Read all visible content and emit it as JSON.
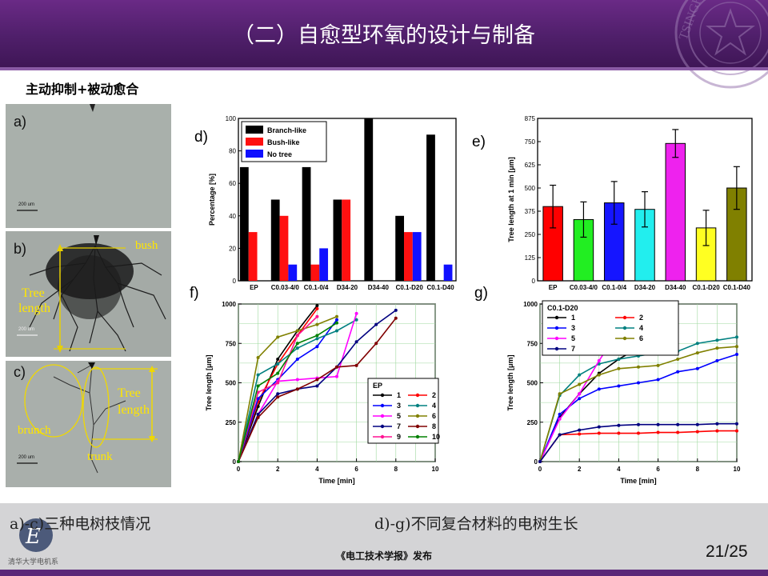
{
  "slide": {
    "title": "（二）自愈型环氧的设计与制备",
    "subtitle": "主动抑制+被动愈合",
    "caption_left": "a)-c)三种电树枝情况",
    "caption_right": "d)-g)不同复合材料的电树生长",
    "publisher": "《电工技术学报》发布",
    "page": "21/25",
    "logo_text": "清华大学电机系",
    "accent_color": "#5a2778"
  },
  "photos": {
    "a": {
      "label": "a)",
      "scale": "200 um"
    },
    "b": {
      "label": "b)",
      "scale": "200 um",
      "bush": "bush",
      "tree_line1": "Tree",
      "tree_line2": "length"
    },
    "c": {
      "label": "c)",
      "scale": "200 um",
      "brunch": "brunch",
      "trunk": "trunk",
      "tree_line1": "Tree",
      "tree_line2": "length"
    }
  },
  "chart_data": [
    {
      "id": "d",
      "type": "bar",
      "panel_label": "d)",
      "ylabel": "Percentage  [%]",
      "ylim": [
        0,
        100
      ],
      "yticks": [
        0,
        20,
        40,
        60,
        80,
        100
      ],
      "categories": [
        "EP",
        "C0.03-4/0",
        "C0.1-0/4",
        "D34-20",
        "D34-40",
        "C0.1-D20",
        "C0.1-D40"
      ],
      "series": [
        {
          "name": "Branch-like",
          "color": "#000000",
          "values": [
            70,
            50,
            70,
            50,
            100,
            40,
            90
          ]
        },
        {
          "name": "Bush-like",
          "color": "#ff1010",
          "values": [
            30,
            40,
            10,
            50,
            0,
            30,
            0
          ]
        },
        {
          "name": "No tree",
          "color": "#1010ff",
          "values": [
            0,
            10,
            20,
            0,
            0,
            30,
            10
          ]
        }
      ]
    },
    {
      "id": "e",
      "type": "bar",
      "panel_label": "e)",
      "ylabel": "Tree length at 1 min [μm]",
      "ylim": [
        0,
        875
      ],
      "yticks": [
        0,
        125,
        250,
        375,
        500,
        625,
        750,
        875
      ],
      "categories": [
        "EP",
        "C0.03-4/0",
        "C0.1-0/4",
        "D34-20",
        "D34-40",
        "C0.1-D20",
        "C0.1-D40"
      ],
      "values": [
        400,
        330,
        420,
        385,
        740,
        285,
        500
      ],
      "errors": [
        115,
        95,
        115,
        95,
        75,
        95,
        115
      ],
      "colors": [
        "#ff0000",
        "#22ee22",
        "#1515ff",
        "#22eeee",
        "#ee22ee",
        "#ffff22",
        "#808000"
      ]
    },
    {
      "id": "f",
      "type": "line",
      "panel_label": "f)",
      "xlabel": "Time [min]",
      "ylabel": "Tree length [μm]",
      "xlim": [
        0,
        10
      ],
      "ylim": [
        0,
        1000
      ],
      "xticks": [
        0,
        2,
        4,
        6,
        8,
        10
      ],
      "yticks": [
        0,
        250,
        500,
        750,
        1000
      ],
      "legend_title": "EP",
      "series": [
        {
          "name": "1",
          "color": "#000000",
          "x": [
            0,
            1,
            2,
            3,
            4
          ],
          "y": [
            0,
            350,
            650,
            830,
            990
          ]
        },
        {
          "name": "2",
          "color": "#ff0000",
          "x": [
            0,
            1,
            2,
            3,
            4
          ],
          "y": [
            0,
            380,
            620,
            800,
            970
          ]
        },
        {
          "name": "3",
          "color": "#0000ff",
          "x": [
            0,
            1,
            2,
            3,
            4,
            5
          ],
          "y": [
            0,
            400,
            520,
            650,
            730,
            900
          ]
        },
        {
          "name": "4",
          "color": "#008080",
          "x": [
            0,
            1,
            2,
            3,
            4,
            5,
            6
          ],
          "y": [
            0,
            550,
            620,
            720,
            780,
            830,
            900
          ]
        },
        {
          "name": "5",
          "color": "#ff00ff",
          "x": [
            0,
            1,
            2,
            3,
            4,
            5,
            6
          ],
          "y": [
            0,
            300,
            510,
            520,
            530,
            540,
            940
          ]
        },
        {
          "name": "6",
          "color": "#808000",
          "x": [
            0,
            1,
            2,
            3,
            4,
            5
          ],
          "y": [
            0,
            660,
            790,
            830,
            870,
            920
          ]
        },
        {
          "name": "7",
          "color": "#000080",
          "x": [
            0,
            1,
            2,
            3,
            4,
            5,
            6,
            7,
            8
          ],
          "y": [
            0,
            300,
            430,
            460,
            480,
            600,
            760,
            870,
            960
          ]
        },
        {
          "name": "8",
          "color": "#800000",
          "x": [
            0,
            1,
            2,
            3,
            4,
            5,
            6,
            7,
            8
          ],
          "y": [
            0,
            280,
            410,
            460,
            520,
            600,
            610,
            750,
            910
          ]
        },
        {
          "name": "9",
          "color": "#ff1493",
          "x": [
            0,
            1,
            2,
            3,
            4
          ],
          "y": [
            0,
            440,
            500,
            800,
            920
          ]
        },
        {
          "name": "10",
          "color": "#008000",
          "x": [
            0,
            1,
            2,
            3,
            4,
            5
          ],
          "y": [
            0,
            480,
            560,
            750,
            800,
            880
          ]
        }
      ]
    },
    {
      "id": "g",
      "type": "line",
      "panel_label": "g)",
      "xlabel": "Time [min]",
      "ylabel": "Tree length [μm]",
      "xlim": [
        0,
        10
      ],
      "ylim": [
        0,
        1000
      ],
      "xticks": [
        0,
        2,
        4,
        6,
        8,
        10
      ],
      "yticks": [
        0,
        250,
        500,
        750,
        1000
      ],
      "legend_title": "C0.1-D20",
      "series": [
        {
          "name": "1",
          "color": "#000000",
          "x": [
            0,
            1,
            2,
            3,
            4,
            5,
            6
          ],
          "y": [
            0,
            280,
            430,
            560,
            650,
            720,
            860
          ]
        },
        {
          "name": "2",
          "color": "#ff0000",
          "x": [
            0,
            1,
            2,
            3,
            4,
            5,
            6,
            7,
            8,
            9,
            10
          ],
          "y": [
            0,
            170,
            175,
            180,
            180,
            180,
            185,
            185,
            190,
            195,
            195
          ]
        },
        {
          "name": "3",
          "color": "#0000ff",
          "x": [
            0,
            1,
            2,
            3,
            4,
            5,
            6,
            7,
            8,
            9,
            10
          ],
          "y": [
            0,
            300,
            400,
            460,
            480,
            500,
            520,
            570,
            590,
            640,
            680
          ]
        },
        {
          "name": "4",
          "color": "#008080",
          "x": [
            0,
            1,
            2,
            3,
            4,
            5,
            6,
            7,
            8,
            9,
            10
          ],
          "y": [
            0,
            420,
            550,
            620,
            650,
            670,
            690,
            700,
            750,
            770,
            790
          ]
        },
        {
          "name": "5",
          "color": "#ff00ff",
          "x": [
            0,
            1,
            2,
            3,
            4
          ],
          "y": [
            0,
            270,
            430,
            640,
            830
          ]
        },
        {
          "name": "6",
          "color": "#808000",
          "x": [
            0,
            1,
            2,
            3,
            4,
            5,
            6,
            7,
            8,
            9,
            10
          ],
          "y": [
            0,
            430,
            490,
            550,
            590,
            600,
            610,
            650,
            690,
            720,
            730
          ]
        },
        {
          "name": "7",
          "color": "#000080",
          "x": [
            0,
            1,
            2,
            3,
            4,
            5,
            6,
            7,
            8,
            9,
            10
          ],
          "y": [
            0,
            170,
            200,
            220,
            230,
            235,
            235,
            235,
            235,
            240,
            240
          ]
        }
      ]
    }
  ]
}
